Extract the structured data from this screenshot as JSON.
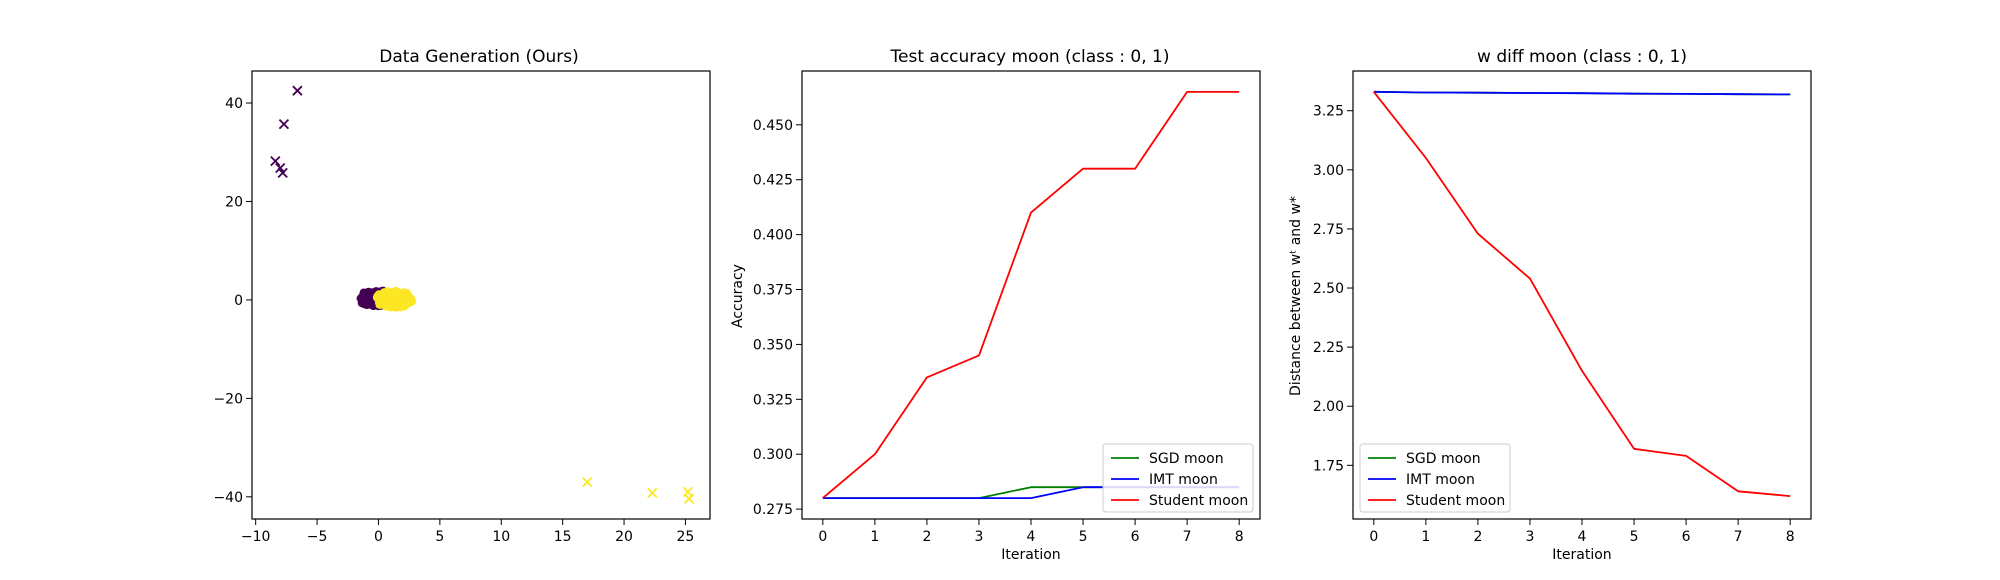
{
  "chart_data": [
    {
      "type": "scatter",
      "title": "Data Generation (Ours)",
      "xlabel": "",
      "ylabel": "",
      "xlim": [
        -10.3,
        27
      ],
      "ylim": [
        -44.5,
        46.5
      ],
      "xticks": [
        -10,
        -5,
        0,
        5,
        10,
        15,
        20,
        25
      ],
      "yticks": [
        -40,
        -20,
        0,
        20,
        40
      ],
      "colors": {
        "class0": "#440154",
        "class1": "#fde725"
      },
      "markers": [
        {
          "x": -6.6,
          "y": 42.5,
          "class": 0
        },
        {
          "x": -7.7,
          "y": 35.7,
          "class": 0
        },
        {
          "x": -8.4,
          "y": 28.2,
          "class": 0
        },
        {
          "x": -8.0,
          "y": 26.8,
          "class": 0
        },
        {
          "x": -7.8,
          "y": 25.8,
          "class": 0
        },
        {
          "x": 17.0,
          "y": -37.0,
          "class": 1
        },
        {
          "x": 22.3,
          "y": -39.2,
          "class": 1
        },
        {
          "x": 25.2,
          "y": -39.0,
          "class": 1
        },
        {
          "x": 25.3,
          "y": -40.4,
          "class": 1
        }
      ],
      "clusters": [
        {
          "class": 0,
          "x_min": -1.7,
          "x_max": 1.3,
          "y_min": -1.3,
          "y_max": 2.0,
          "count": 110
        },
        {
          "class": 1,
          "x_min": -0.3,
          "x_max": 2.8,
          "y_min": -1.6,
          "y_max": 1.9,
          "count": 110
        }
      ]
    },
    {
      "type": "line",
      "title": "Test accuracy moon (class : 0, 1)",
      "xlabel": "Iteration",
      "ylabel": "Accuracy",
      "xlim": [
        -0.4,
        8.4
      ],
      "ylim": [
        0.2705,
        0.4745
      ],
      "xticks": [
        0,
        1,
        2,
        3,
        4,
        5,
        6,
        7,
        8
      ],
      "yticks": [
        0.275,
        0.3,
        0.325,
        0.35,
        0.375,
        0.4,
        0.425,
        0.45
      ],
      "ytick_labels": [
        "0.275",
        "0.300",
        "0.325",
        "0.350",
        "0.375",
        "0.400",
        "0.425",
        "0.450"
      ],
      "legend": "bottom-right",
      "x": [
        0,
        1,
        2,
        3,
        4,
        5,
        6,
        7,
        8
      ],
      "series": [
        {
          "name": "SGD moon",
          "color": "#008000",
          "values": [
            0.28,
            0.28,
            0.28,
            0.28,
            0.285,
            0.285,
            0.285,
            0.285,
            0.285
          ]
        },
        {
          "name": "IMT moon",
          "color": "#0000ff",
          "values": [
            0.28,
            0.28,
            0.28,
            0.28,
            0.28,
            0.285,
            0.285,
            0.285,
            0.285
          ]
        },
        {
          "name": "Student moon",
          "color": "#ff0000",
          "values": [
            0.28,
            0.3,
            0.335,
            0.345,
            0.41,
            0.43,
            0.43,
            0.465,
            0.465
          ]
        }
      ]
    },
    {
      "type": "line",
      "title": "w diff moon (class : 0, 1)",
      "xlabel": "Iteration",
      "ylabel": "Distance between wᵗ and w*",
      "xlim": [
        -0.4,
        8.4
      ],
      "ylim": [
        1.523,
        3.418
      ],
      "xticks": [
        0,
        1,
        2,
        3,
        4,
        5,
        6,
        7,
        8
      ],
      "yticks": [
        1.75,
        2.0,
        2.25,
        2.5,
        2.75,
        3.0,
        3.25
      ],
      "ytick_labels": [
        "1.75",
        "2.00",
        "2.25",
        "2.50",
        "2.75",
        "3.00",
        "3.25"
      ],
      "legend": "bottom-left",
      "x": [
        0,
        1,
        2,
        3,
        4,
        5,
        6,
        7,
        8
      ],
      "series": [
        {
          "name": "SGD moon",
          "color": "#008000",
          "values": [
            3.33,
            3.327,
            3.326,
            3.325,
            3.324,
            3.322,
            3.321,
            3.32,
            3.319
          ]
        },
        {
          "name": "IMT moon",
          "color": "#0000ff",
          "values": [
            3.33,
            3.327,
            3.326,
            3.325,
            3.324,
            3.322,
            3.321,
            3.32,
            3.319
          ]
        },
        {
          "name": "Student moon",
          "color": "#ff0000",
          "values": [
            3.33,
            3.05,
            2.73,
            2.54,
            2.15,
            1.82,
            1.79,
            1.64,
            1.62
          ]
        }
      ]
    }
  ]
}
